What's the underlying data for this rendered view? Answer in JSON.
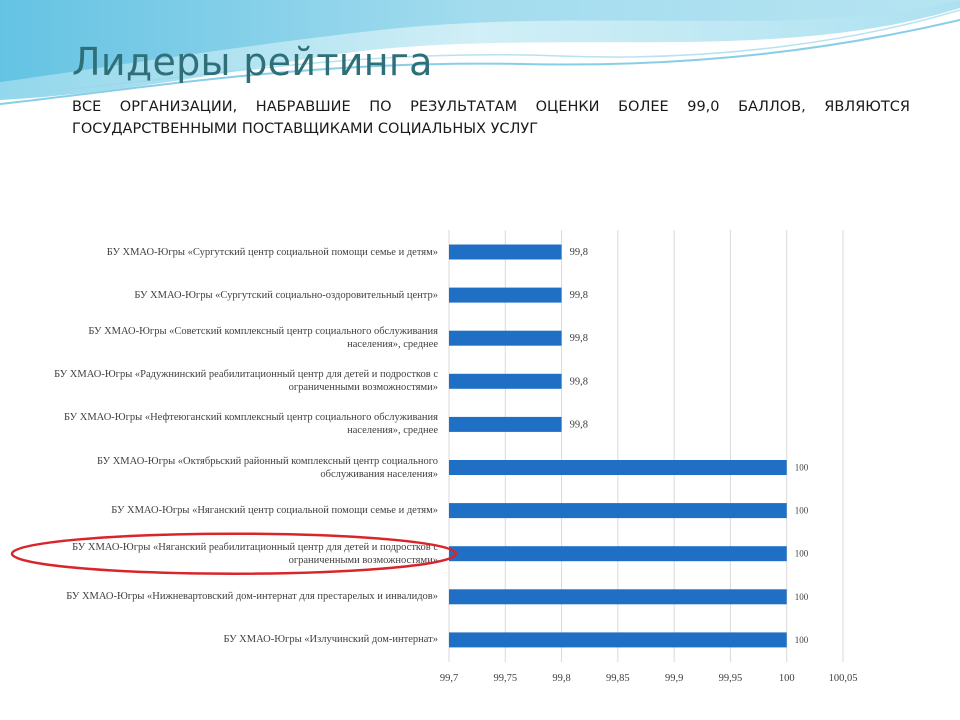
{
  "slide": {
    "title": "Лидеры рейтинга",
    "subtitle": "Все организации, набравшие по результатам оценки более 99,0 баллов, являются государственными поставщиками социальных услуг",
    "accent_color": "#2f6f78",
    "highlight_color": "#d9252a"
  },
  "chart_data": {
    "type": "bar",
    "orientation": "horizontal",
    "categories": [
      "БУ ХМАО-Югры «Сургутский центр социальной помощи семье и детям»",
      "БУ ХМАО-Югры «Сургутский социально-оздоровительный центр»",
      "БУ ХМАО-Югры «Советский комплексный центр социального обслуживания населения», среднее",
      "БУ ХМАО-Югры «Радужнинский реабилитационный центр для детей и подростков с ограниченными возможностями»",
      "БУ ХМАО-Югры «Нефтеюганский комплексный центр социального обслуживания населения», среднее",
      "БУ ХМАО-Югры «Октябрьский районный комплексный центр социального обслуживания населения»",
      "БУ ХМАО-Югры «Няганский центр социальной помощи семье и детям»",
      "БУ ХМАО-Югры «Няганский реабилитационный центр для детей и подростков с ограниченными возможностями»",
      "БУ ХМАО-Югры «Нижневартовский дом-интернат для престарелых и инвалидов»",
      "БУ ХМАО-Югры «Излучинский дом-интернат»"
    ],
    "values": [
      99.8,
      99.8,
      99.8,
      99.8,
      99.8,
      100,
      100,
      100,
      100,
      100
    ],
    "data_labels": [
      "99,8",
      "99,8",
      "99,8",
      "99,8",
      "99,8",
      "100",
      "100",
      "100",
      "100",
      "100"
    ],
    "x_ticks": [
      99.7,
      99.75,
      99.8,
      99.85,
      99.9,
      99.95,
      100,
      100.05
    ],
    "x_tick_labels": [
      "99,7",
      "99,75",
      "99,8",
      "99,85",
      "99,9",
      "99,95",
      "100",
      "100,05"
    ],
    "xlim": [
      99.7,
      100.05
    ],
    "highlighted_index": 7,
    "bar_color": "#1f6fc5",
    "grid": "vertical",
    "legend": "none"
  }
}
